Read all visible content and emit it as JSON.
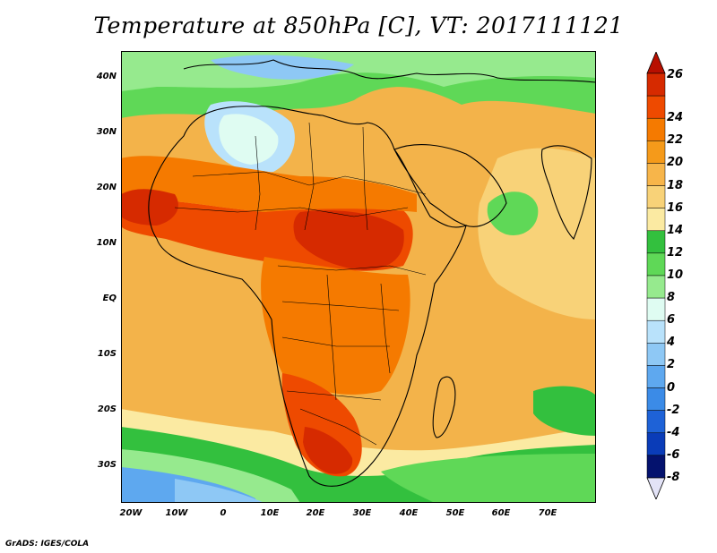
{
  "title": "Temperature at 850hPa [C], VT: 2017111121",
  "footer": "GrADS: IGES/COLA",
  "latitude_labels": [
    "40N",
    "30N",
    "20N",
    "10N",
    "EQ",
    "10S",
    "20S",
    "30S"
  ],
  "longitude_labels": [
    "20W",
    "10W",
    "0",
    "10E",
    "20E",
    "30E",
    "40E",
    "50E",
    "60E",
    "70E"
  ],
  "colorbar": {
    "labels": [
      "26",
      "24",
      "22",
      "20",
      "18",
      "16",
      "14",
      "12",
      "10",
      "8",
      "6",
      "4",
      "2",
      "0",
      "-2",
      "-4",
      "-6",
      "-8"
    ],
    "colors": [
      "#d62a00",
      "#ee4a00",
      "#f57a00",
      "#f59a1a",
      "#f7b54a",
      "#f8d278",
      "#fbeaa2",
      "#33c03e",
      "#5fd857",
      "#96ea8e",
      "#dffcf2",
      "#b9e2fb",
      "#8ec8f5",
      "#5ea8ef",
      "#3b8be7",
      "#1e62d7",
      "#0a3cb8",
      "#04126e"
    ],
    "top_arrow_color": "#b80f00",
    "bottom_arrow_color": "#e3e3f7"
  }
}
